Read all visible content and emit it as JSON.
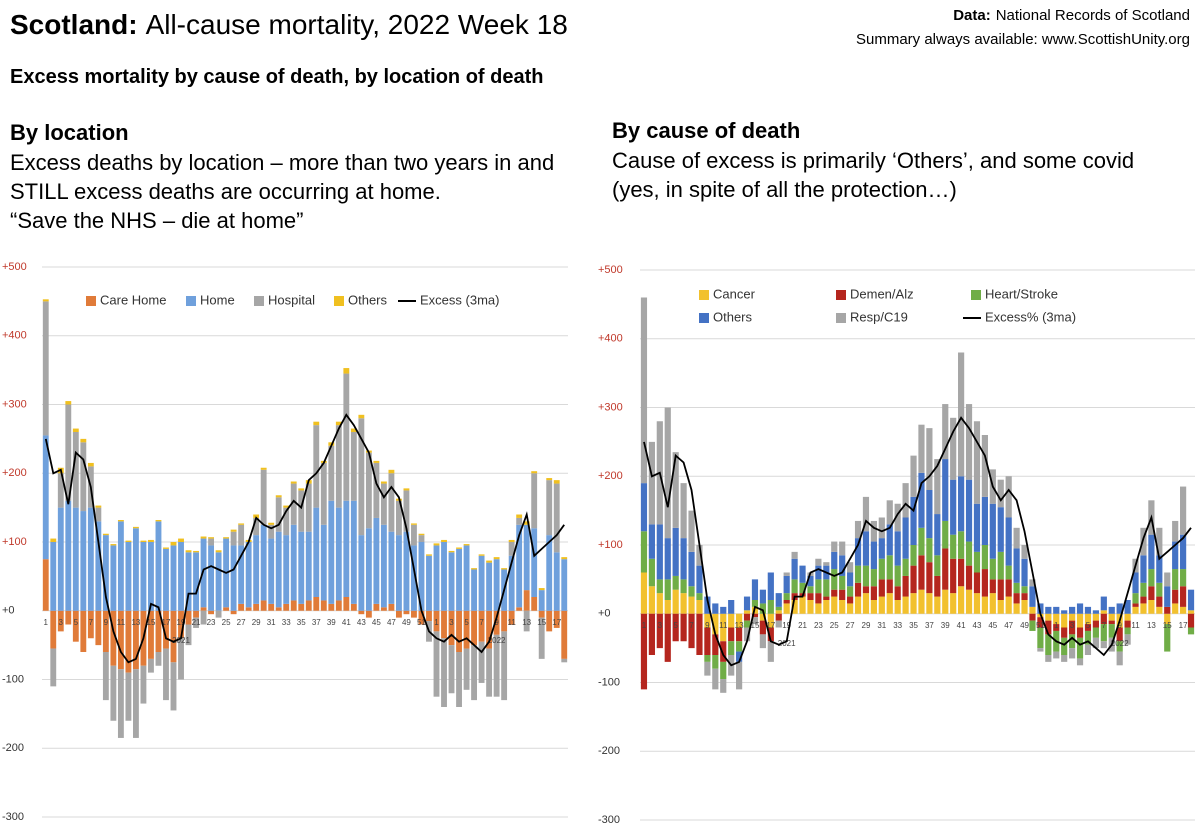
{
  "title_bold": "Scotland:",
  "title": "All-cause mortality, 2022 Week 18",
  "source_label": "Data:",
  "source": "National Records of Scotland",
  "summary": "Summary always available: www.ScottishUnity.org",
  "subtitle": "Excess mortality by cause of death, by location of death",
  "sections": [
    {
      "heading": "By location",
      "lines": [
        "Excess deaths by location – more than two years in and",
        "STILL excess deaths are occurring at home.",
        "“Save the NHS – die at home”"
      ]
    },
    {
      "heading": "By cause of death",
      "lines": [
        "Cause of excess is primarily ‘Others’, and some covid",
        "(yes, in spite of all the protection…)"
      ]
    }
  ],
  "chart_data": [
    {
      "type": "bar",
      "stacked": true,
      "grid": true,
      "ylim": [
        -300,
        500
      ],
      "yticks": [
        {
          "value": 500,
          "label": "+500"
        },
        {
          "value": 400,
          "label": "+400"
        },
        {
          "value": 300,
          "label": "+300"
        },
        {
          "value": 200,
          "label": "+200"
        },
        {
          "value": 100,
          "label": "+100"
        },
        {
          "value": 0,
          "label": "+0"
        },
        -100,
        -200,
        -300
      ],
      "years": [
        "2021",
        "2022"
      ],
      "categories": [
        "1",
        null,
        "3",
        null,
        "5",
        null,
        "7",
        null,
        "9",
        null,
        "11",
        null,
        "13",
        null,
        "15",
        null,
        "17",
        null,
        "19",
        null,
        "21",
        null,
        "23",
        null,
        "25",
        null,
        "27",
        null,
        "29",
        null,
        "31",
        null,
        "33",
        null,
        "35",
        null,
        "37",
        null,
        "39",
        null,
        "41",
        null,
        "43",
        null,
        "45",
        null,
        "47",
        null,
        "49",
        null,
        "51",
        null,
        "1",
        null,
        "3",
        null,
        "5",
        null,
        "7",
        null,
        "9",
        null,
        "11",
        null,
        "13",
        null,
        "15",
        null,
        "17",
        null
      ],
      "series": [
        {
          "name": "Care Home",
          "color": "#e07b39",
          "values": [
            75,
            -55,
            -30,
            -20,
            -45,
            -60,
            -40,
            -50,
            -60,
            -80,
            -85,
            -90,
            -85,
            -80,
            -70,
            -60,
            -55,
            -75,
            -40,
            -20,
            -10,
            5,
            -5,
            0,
            5,
            -5,
            10,
            5,
            10,
            15,
            10,
            5,
            10,
            15,
            10,
            15,
            20,
            15,
            10,
            15,
            20,
            10,
            -5,
            -10,
            10,
            5,
            10,
            -10,
            -5,
            -10,
            -20,
            -15,
            -30,
            -40,
            -50,
            -60,
            -55,
            -50,
            -45,
            -55,
            -35,
            -30,
            -20,
            5,
            30,
            20,
            -10,
            -30,
            -25,
            -70
          ]
        },
        {
          "name": "Home",
          "color": "#6fa0dc",
          "values": [
            180,
            100,
            150,
            160,
            150,
            145,
            150,
            130,
            110,
            95,
            130,
            100,
            120,
            100,
            100,
            130,
            90,
            95,
            100,
            85,
            85,
            100,
            95,
            85,
            100,
            95,
            85,
            95,
            100,
            110,
            95,
            110,
            100,
            110,
            105,
            100,
            130,
            110,
            150,
            135,
            140,
            150,
            110,
            120,
            125,
            120,
            105,
            110,
            115,
            95,
            100,
            80,
            95,
            100,
            85,
            90,
            95,
            60,
            80,
            70,
            75,
            60,
            80,
            120,
            95,
            100,
            30,
            110,
            85,
            75
          ]
        },
        {
          "name": "Hospital",
          "color": "#a6a6a6",
          "values": [
            195,
            -55,
            50,
            140,
            110,
            100,
            60,
            20,
            -70,
            -80,
            -100,
            -70,
            -100,
            -55,
            -20,
            -20,
            -75,
            -70,
            -60,
            -30,
            -15,
            -20,
            10,
            -10,
            0,
            20,
            30,
            0,
            25,
            80,
            20,
            50,
            40,
            60,
            60,
            70,
            120,
            90,
            80,
            120,
            185,
            100,
            170,
            110,
            80,
            60,
            85,
            50,
            60,
            30,
            10,
            -30,
            -95,
            -100,
            -70,
            -80,
            -60,
            -80,
            -60,
            -70,
            -90,
            -100,
            20,
            10,
            -30,
            80,
            -60,
            80,
            100,
            -5
          ]
        },
        {
          "name": "Others",
          "color": "#f0c020",
          "values": [
            3,
            5,
            8,
            5,
            5,
            5,
            5,
            3,
            2,
            2,
            2,
            2,
            2,
            2,
            3,
            2,
            2,
            5,
            5,
            3,
            2,
            3,
            2,
            3,
            2,
            3,
            2,
            3,
            5,
            3,
            3,
            3,
            3,
            3,
            3,
            5,
            5,
            3,
            5,
            5,
            8,
            5,
            5,
            3,
            3,
            3,
            5,
            3,
            3,
            2,
            2,
            2,
            3,
            3,
            2,
            2,
            2,
            2,
            2,
            3,
            3,
            2,
            3,
            5,
            5,
            3,
            3,
            3,
            5,
            3
          ]
        },
        {
          "name": "Excess (3ma)",
          "type": "line",
          "color": "#000000",
          "values": [
            250,
            200,
            205,
            155,
            230,
            220,
            180,
            100,
            20,
            -30,
            -60,
            -75,
            -70,
            -40,
            10,
            5,
            -40,
            -45,
            -40,
            25,
            25,
            60,
            65,
            60,
            55,
            60,
            80,
            100,
            135,
            125,
            120,
            125,
            145,
            160,
            150,
            190,
            200,
            215,
            240,
            265,
            285,
            270,
            250,
            230,
            185,
            165,
            180,
            165,
            120,
            60,
            0,
            -30,
            -40,
            -45,
            -35,
            -45,
            -40,
            -50,
            -60,
            -45,
            -10,
            30,
            70,
            110,
            140,
            80,
            90,
            100,
            110,
            125
          ]
        }
      ]
    },
    {
      "type": "bar",
      "stacked": true,
      "grid": true,
      "ylim": [
        -300,
        500
      ],
      "yticks": [
        {
          "value": 500,
          "label": "+500"
        },
        {
          "value": 400,
          "label": "+400"
        },
        {
          "value": 300,
          "label": "+300"
        },
        {
          "value": 200,
          "label": "+200"
        },
        {
          "value": 100,
          "label": "+100"
        },
        {
          "value": 0,
          "label": "+0"
        },
        -100,
        -200,
        -300
      ],
      "years": [
        "2021",
        "2022"
      ],
      "categories": [
        "1",
        null,
        "3",
        null,
        "5",
        null,
        "7",
        null,
        "9",
        null,
        "11",
        null,
        "13",
        null,
        "15",
        null,
        "17",
        null,
        "19",
        null,
        "21",
        null,
        "23",
        null,
        "25",
        null,
        "27",
        null,
        "29",
        null,
        "31",
        null,
        "33",
        null,
        "35",
        null,
        "37",
        null,
        "39",
        null,
        "41",
        null,
        "43",
        null,
        "45",
        null,
        "47",
        null,
        "49",
        null,
        "51",
        null,
        "1",
        null,
        "3",
        null,
        "5",
        null,
        "7",
        null,
        "9",
        null,
        "11",
        null,
        "13",
        null,
        "15",
        null,
        "17",
        null
      ],
      "series": [
        {
          "name": "Cancer",
          "color": "#f2c12e",
          "values": [
            60,
            40,
            30,
            20,
            35,
            30,
            25,
            20,
            -20,
            -30,
            -40,
            -20,
            -20,
            5,
            10,
            -10,
            -20,
            5,
            15,
            20,
            25,
            20,
            15,
            20,
            25,
            20,
            15,
            25,
            30,
            20,
            25,
            30,
            20,
            25,
            30,
            35,
            30,
            25,
            35,
            30,
            40,
            35,
            30,
            25,
            30,
            20,
            25,
            15,
            20,
            10,
            -5,
            -10,
            -15,
            -20,
            -10,
            -20,
            -15,
            -10,
            5,
            -10,
            -20,
            -10,
            10,
            15,
            20,
            10,
            -15,
            15,
            10,
            5
          ]
        },
        {
          "name": "Demen/Alz",
          "color": "#b5261e",
          "values": [
            -110,
            -60,
            -50,
            -70,
            -40,
            -40,
            -50,
            -60,
            -40,
            -30,
            -30,
            -20,
            -20,
            -10,
            -5,
            -20,
            -20,
            -10,
            5,
            10,
            5,
            10,
            15,
            5,
            10,
            15,
            10,
            20,
            10,
            20,
            25,
            20,
            20,
            30,
            40,
            50,
            45,
            30,
            60,
            50,
            40,
            35,
            30,
            40,
            20,
            30,
            25,
            15,
            10,
            -10,
            -15,
            -20,
            -10,
            -15,
            -20,
            -15,
            -10,
            -10,
            -15,
            -5,
            -20,
            -10,
            5,
            10,
            20,
            15,
            10,
            20,
            30,
            -20
          ]
        },
        {
          "name": "Heart/Stroke",
          "color": "#70ad47",
          "values": [
            60,
            40,
            20,
            30,
            20,
            20,
            15,
            10,
            -10,
            -20,
            -25,
            -20,
            -15,
            -10,
            10,
            15,
            20,
            5,
            10,
            20,
            15,
            10,
            20,
            25,
            30,
            20,
            15,
            25,
            30,
            25,
            30,
            35,
            30,
            25,
            30,
            40,
            35,
            30,
            40,
            35,
            40,
            35,
            30,
            35,
            30,
            40,
            20,
            15,
            10,
            -15,
            -30,
            -30,
            -30,
            -25,
            -20,
            -30,
            -20,
            -15,
            -25,
            -20,
            -15,
            -10,
            15,
            20,
            25,
            20,
            -40,
            30,
            25,
            -10
          ]
        },
        {
          "name": "Others",
          "color": "#4472c4",
          "values": [
            70,
            50,
            80,
            60,
            70,
            60,
            50,
            40,
            25,
            15,
            10,
            20,
            -15,
            20,
            30,
            20,
            40,
            20,
            25,
            30,
            25,
            15,
            20,
            20,
            25,
            30,
            20,
            40,
            50,
            40,
            30,
            45,
            50,
            60,
            70,
            80,
            70,
            60,
            90,
            80,
            80,
            90,
            70,
            70,
            80,
            65,
            70,
            50,
            40,
            30,
            15,
            10,
            10,
            5,
            10,
            15,
            10,
            5,
            20,
            10,
            15,
            20,
            30,
            40,
            50,
            40,
            30,
            40,
            50,
            30
          ]
        },
        {
          "name": "Resp/C19",
          "color": "#a6a6a6",
          "values": [
            270,
            120,
            150,
            190,
            110,
            80,
            60,
            30,
            -20,
            -30,
            -20,
            -30,
            -40,
            -20,
            -10,
            -20,
            -30,
            -10,
            5,
            10,
            0,
            5,
            10,
            5,
            15,
            20,
            15,
            25,
            50,
            30,
            30,
            35,
            40,
            50,
            60,
            70,
            90,
            80,
            80,
            90,
            180,
            110,
            120,
            90,
            50,
            40,
            60,
            30,
            20,
            10,
            -5,
            -10,
            -10,
            -10,
            -15,
            -10,
            -15,
            -15,
            -10,
            -20,
            -20,
            -15,
            20,
            40,
            50,
            40,
            20,
            30,
            70,
            0
          ]
        },
        {
          "name": "Excess% (3ma)",
          "type": "line",
          "color": "#000000",
          "values": [
            250,
            200,
            205,
            155,
            230,
            220,
            180,
            100,
            20,
            -30,
            -60,
            -75,
            -70,
            -40,
            10,
            5,
            -40,
            -45,
            -40,
            25,
            25,
            60,
            65,
            60,
            55,
            60,
            80,
            100,
            135,
            125,
            120,
            125,
            145,
            160,
            150,
            190,
            200,
            215,
            240,
            265,
            285,
            270,
            250,
            230,
            185,
            165,
            180,
            165,
            120,
            60,
            0,
            -30,
            -40,
            -45,
            -35,
            -45,
            -40,
            -50,
            -60,
            -45,
            -10,
            30,
            70,
            110,
            140,
            80,
            90,
            100,
            110,
            125
          ]
        }
      ]
    }
  ]
}
